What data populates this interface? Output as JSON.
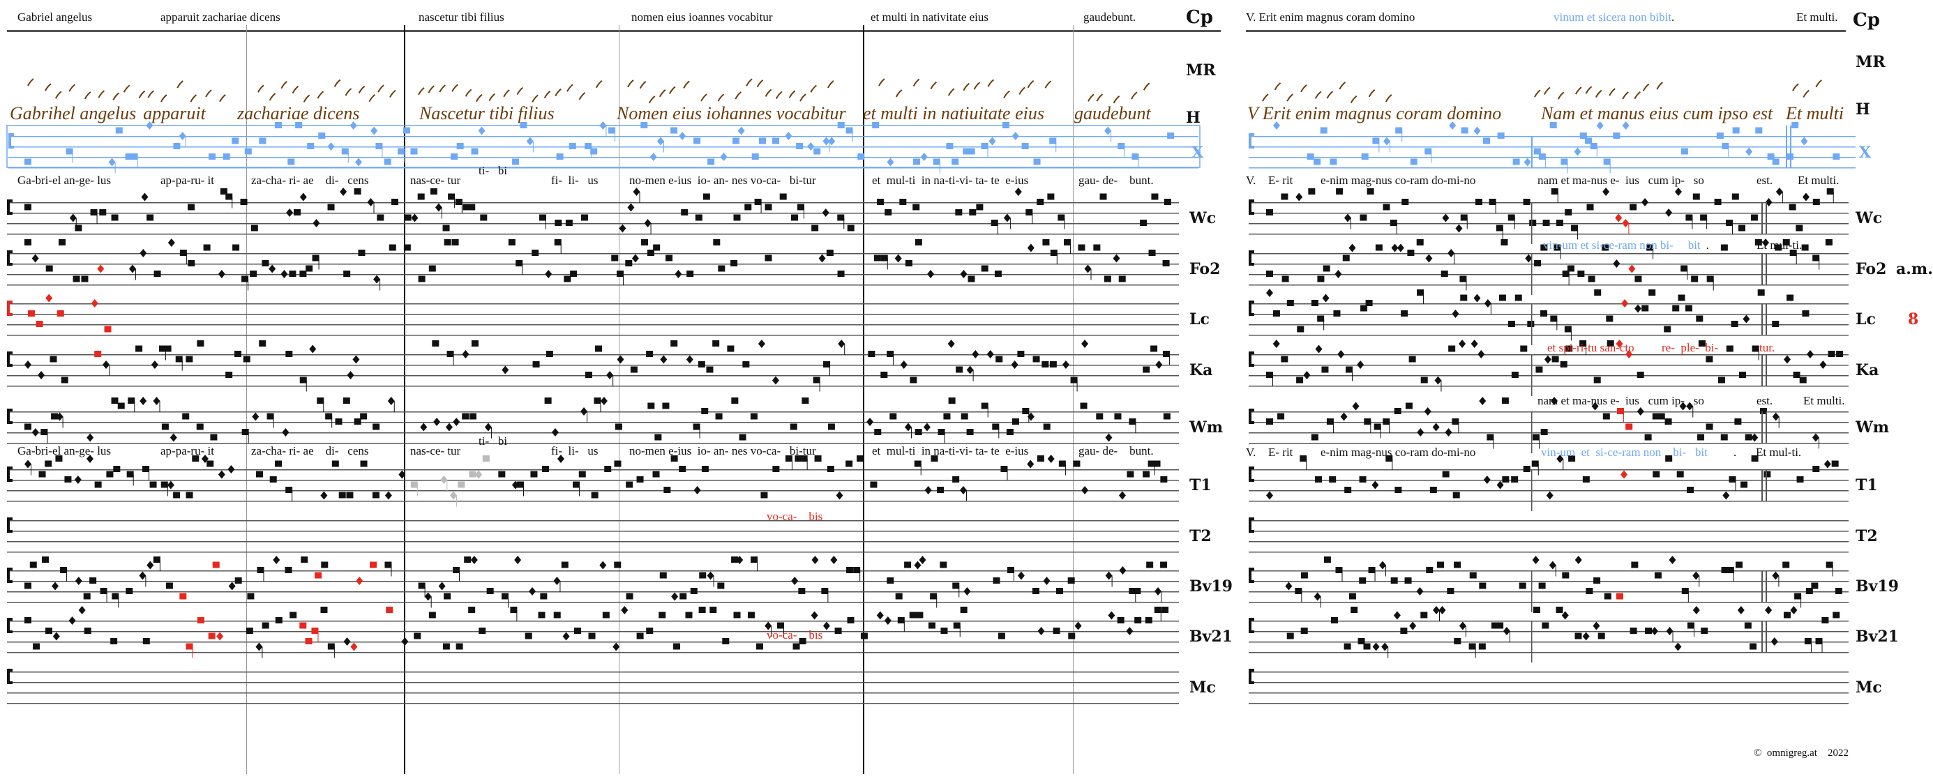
{
  "colors": {
    "blue": "#6fa8f5",
    "red": "#e8281e",
    "brown": "#6b3d0c",
    "green": "#5a8a6a",
    "gray": "#bbbbbb"
  },
  "header": {
    "left": [
      "Gabriel angelus",
      "apparuit zachariae dicens",
      "nascetur tibi filius",
      "nomen eius ioannes vocabitur",
      "et multi in nativitate eius",
      "gaudebunt."
    ],
    "right": [
      {
        "text": "V. Erit enim magnus coram domino",
        "color": "black"
      },
      {
        "text": "vinum et sicera non bibit",
        "color": "blue"
      },
      {
        "text": ".",
        "color": "black"
      },
      {
        "text": "Et multi.",
        "color": "black"
      }
    ],
    "label": "Cp"
  },
  "manuscript": {
    "left": [
      "Gabrihel angelus",
      "apparuit",
      "zachariae dicens",
      "Nascetur tibi filius",
      "Nomen eius iohannes vocabitur",
      "et multi in natiuitate eius",
      "gaudebunt"
    ],
    "right": [
      "V Erit enim magnus coram domino",
      "Nam et manus eius cum ipso est",
      "Et multi"
    ]
  },
  "rows": [
    {
      "id": "MR",
      "label": "MR"
    },
    {
      "id": "H",
      "label": "H"
    },
    {
      "id": "X",
      "label": "X"
    },
    {
      "id": "Wc",
      "label": "Wc"
    },
    {
      "id": "Fo2",
      "label": "Fo2",
      "note": "a.m."
    },
    {
      "id": "Lc",
      "label": "Lc",
      "note": "8"
    },
    {
      "id": "Ka",
      "label": "Ka"
    },
    {
      "id": "Wm",
      "label": "Wm"
    },
    {
      "id": "T1",
      "label": "T1"
    },
    {
      "id": "T2",
      "label": "T2"
    },
    {
      "id": "Bv19",
      "label": "Bv19"
    },
    {
      "id": "Bv21",
      "label": "Bv21"
    },
    {
      "id": "Mc",
      "label": "Mc"
    }
  ],
  "lyrics": {
    "left_main": [
      "Ga-bri-el an-ge- lus",
      "ap-pa-ru- it",
      "za-cha- ri- ae    di-   cens",
      "nas-ce- tur",
      "ti-   bi",
      "fi-  li-   us",
      "no-men e-ius  io- an- nes vo-ca-   bi-tur",
      "et  mul-ti  in na-ti-vi- ta- te  e-ius",
      "gau- de-    bunt."
    ],
    "right_main": [
      "V.",
      "E- rit",
      "e-nim mag-nus co-ram do-mi-no",
      "nam et ma-nus e-  ius   cum ip-   so",
      "est.",
      "Et multi."
    ],
    "fo2_right": [
      {
        "text": "vin-um et si-ce-ram non bi-   ",
        "color": "blue"
      },
      {
        "text": "bit",
        "color": "blue"
      },
      {
        "text": ".",
        "color": "black"
      },
      {
        "text": "Et mul-ti.",
        "color": "black"
      }
    ],
    "ka_right": [
      "et spi-ri-tu san-cto",
      "re-  ple-  bi-",
      "tur."
    ],
    "wm_right": [
      "nam et ma-nus e-  ius   cum ip-   so",
      "est.",
      "Et multi."
    ],
    "t1_right": [
      {
        "text": "V.",
        "color": "black"
      },
      {
        "text": "E- rit",
        "color": "black"
      },
      {
        "text": "e-nim mag-nus co-ram do-mi-no",
        "color": "black"
      },
      {
        "text": "vin-um  et  si-ce-ram non    bi-   bit",
        "color": "blue"
      },
      {
        "text": ".",
        "color": "black"
      },
      {
        "text": "Et mul-ti.",
        "color": "black"
      }
    ],
    "vocabis": "vo-ca-    bis"
  },
  "footer": {
    "copyright": "©  omnigreg.at    2022"
  }
}
